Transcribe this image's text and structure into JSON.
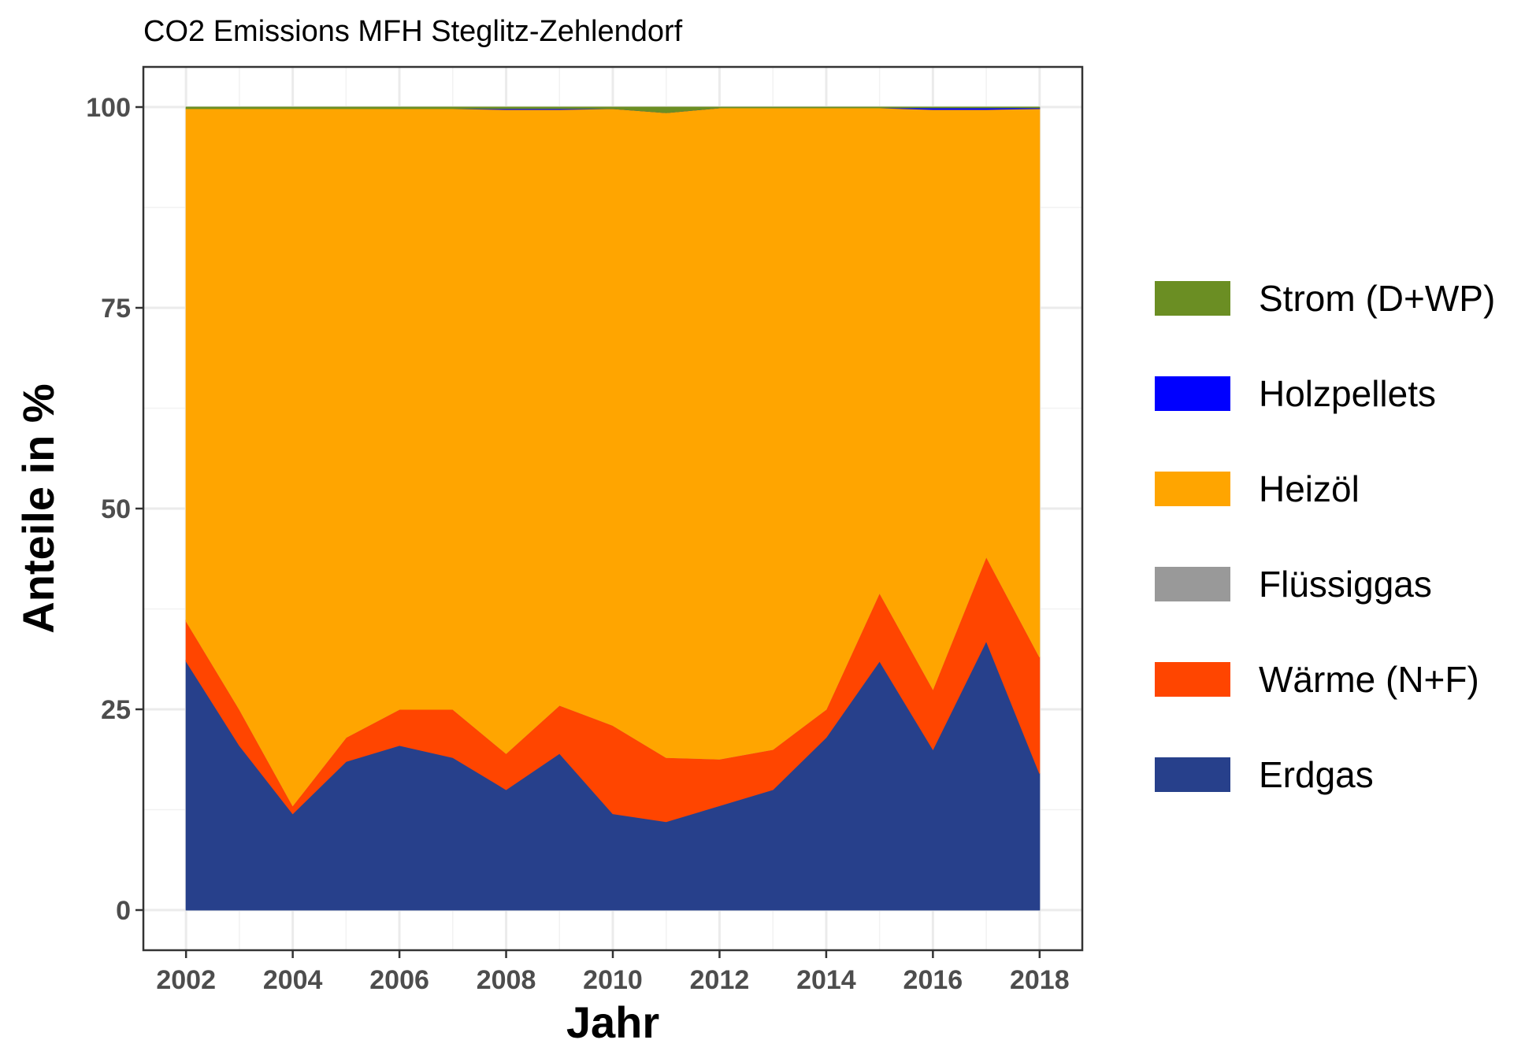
{
  "chart_data": {
    "type": "area",
    "stacked": true,
    "title": "CO2 Emissions MFH Steglitz-Zehlendorf",
    "xlabel": "Jahr",
    "ylabel": "Anteile in %",
    "xlim": [
      2001.2,
      2018.8
    ],
    "ylim": [
      -5,
      105
    ],
    "x_ticks": [
      2002,
      2004,
      2006,
      2008,
      2010,
      2012,
      2014,
      2016,
      2018
    ],
    "y_ticks": [
      0,
      25,
      50,
      75,
      100
    ],
    "grid": true,
    "legend_position": "right",
    "x": [
      2002,
      2003,
      2004,
      2005,
      2006,
      2007,
      2008,
      2009,
      2010,
      2011,
      2012,
      2013,
      2014,
      2015,
      2016,
      2017,
      2018
    ],
    "series": [
      {
        "name": "Erdgas",
        "color": "#27408B",
        "values": [
          31,
          20.5,
          12,
          18.5,
          20.5,
          19,
          15,
          19.5,
          12,
          11,
          13,
          15,
          21.5,
          31,
          20,
          33.5,
          17
        ]
      },
      {
        "name": "Wärme (N+F)",
        "color": "#FF4500",
        "values": [
          5,
          4.5,
          1,
          3,
          4.5,
          6,
          4.5,
          6,
          11,
          8,
          5.8,
          5,
          3.5,
          8.5,
          7.5,
          10.5,
          14.5
        ]
      },
      {
        "name": "Flüssiggas",
        "color": "#999999",
        "values": [
          0,
          0,
          0,
          0,
          0,
          0,
          0,
          0,
          0,
          0,
          0,
          0,
          0,
          0,
          0,
          0,
          0
        ]
      },
      {
        "name": "Heizöl",
        "color": "#FFA500",
        "values": [
          63.8,
          74.8,
          86.8,
          78.3,
          74.8,
          74.8,
          80.2,
          74.2,
          76.8,
          80.3,
          81.1,
          79.9,
          74.9,
          60.4,
          72.2,
          55.7,
          68.3
        ]
      },
      {
        "name": "Holzpellets",
        "color": "#0000FF",
        "values": [
          0,
          0,
          0,
          0,
          0,
          0,
          0.1,
          0.1,
          0,
          0,
          0,
          0,
          0,
          0,
          0.2,
          0.2,
          0.1
        ]
      },
      {
        "name": "Strom (D+WP)",
        "color": "#6B8E23",
        "values": [
          0.2,
          0.2,
          0.2,
          0.2,
          0.2,
          0.2,
          0.2,
          0.2,
          0.2,
          0.7,
          0.1,
          0.1,
          0.1,
          0.1,
          0.1,
          0.1,
          0.1
        ]
      }
    ],
    "legend": [
      {
        "label": "Strom (D+WP)",
        "color": "#6B8E23"
      },
      {
        "label": "Holzpellets",
        "color": "#0000FF"
      },
      {
        "label": "Heizöl",
        "color": "#FFA500"
      },
      {
        "label": "Flüssiggas",
        "color": "#999999"
      },
      {
        "label": "Wärme (N+F)",
        "color": "#FF4500"
      },
      {
        "label": "Erdgas",
        "color": "#27408B"
      }
    ]
  }
}
